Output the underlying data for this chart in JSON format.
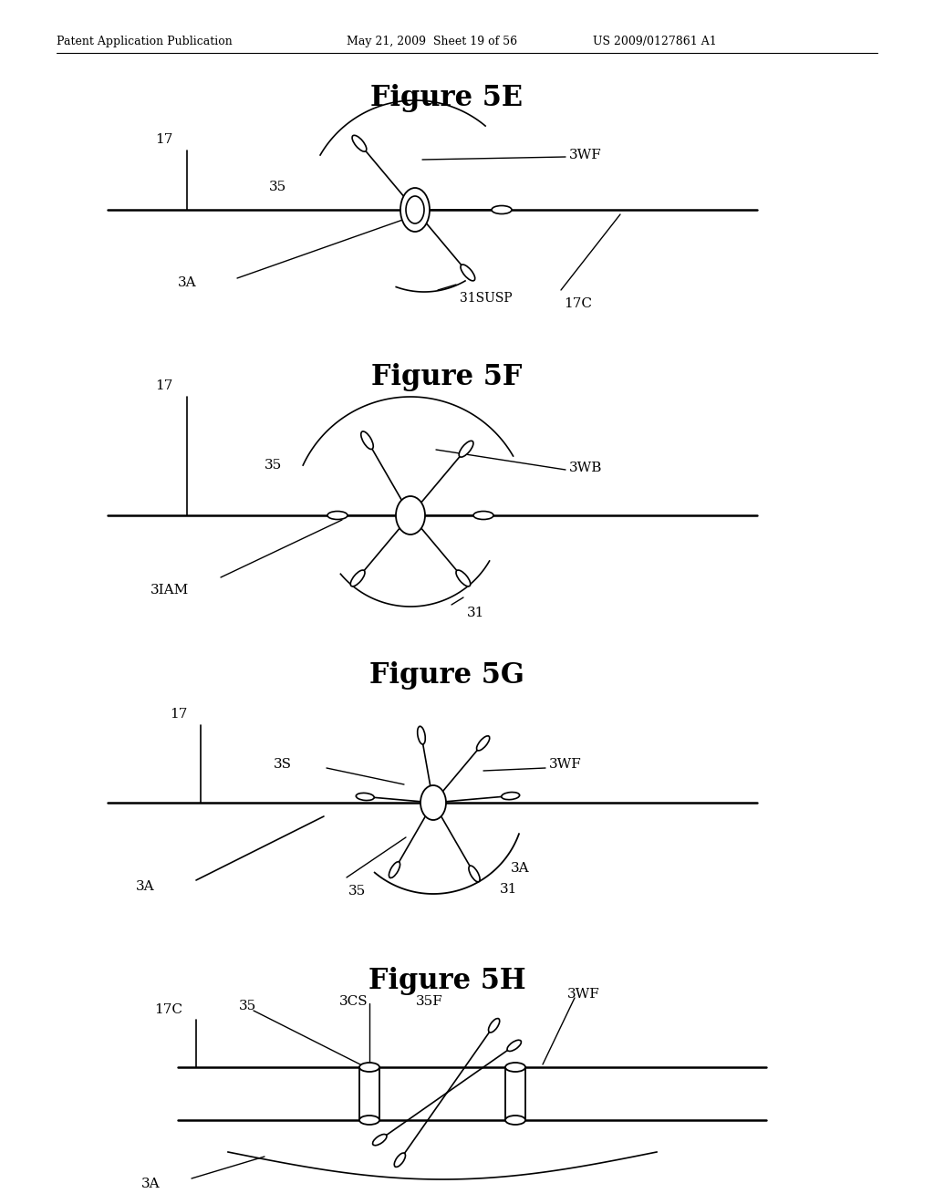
{
  "bg_color": "#ffffff",
  "header_left": "Patent Application Publication",
  "header_mid": "May 21, 2009  Sheet 19 of 56",
  "header_right": "US 2009/0127861 A1",
  "fig5e_title": "Figure 5E",
  "fig5f_title": "Figure 5F",
  "fig5g_title": "Figure 5G",
  "fig5h_title": "Figure 5H",
  "title_fontsize": 22,
  "label_fontsize": 11
}
